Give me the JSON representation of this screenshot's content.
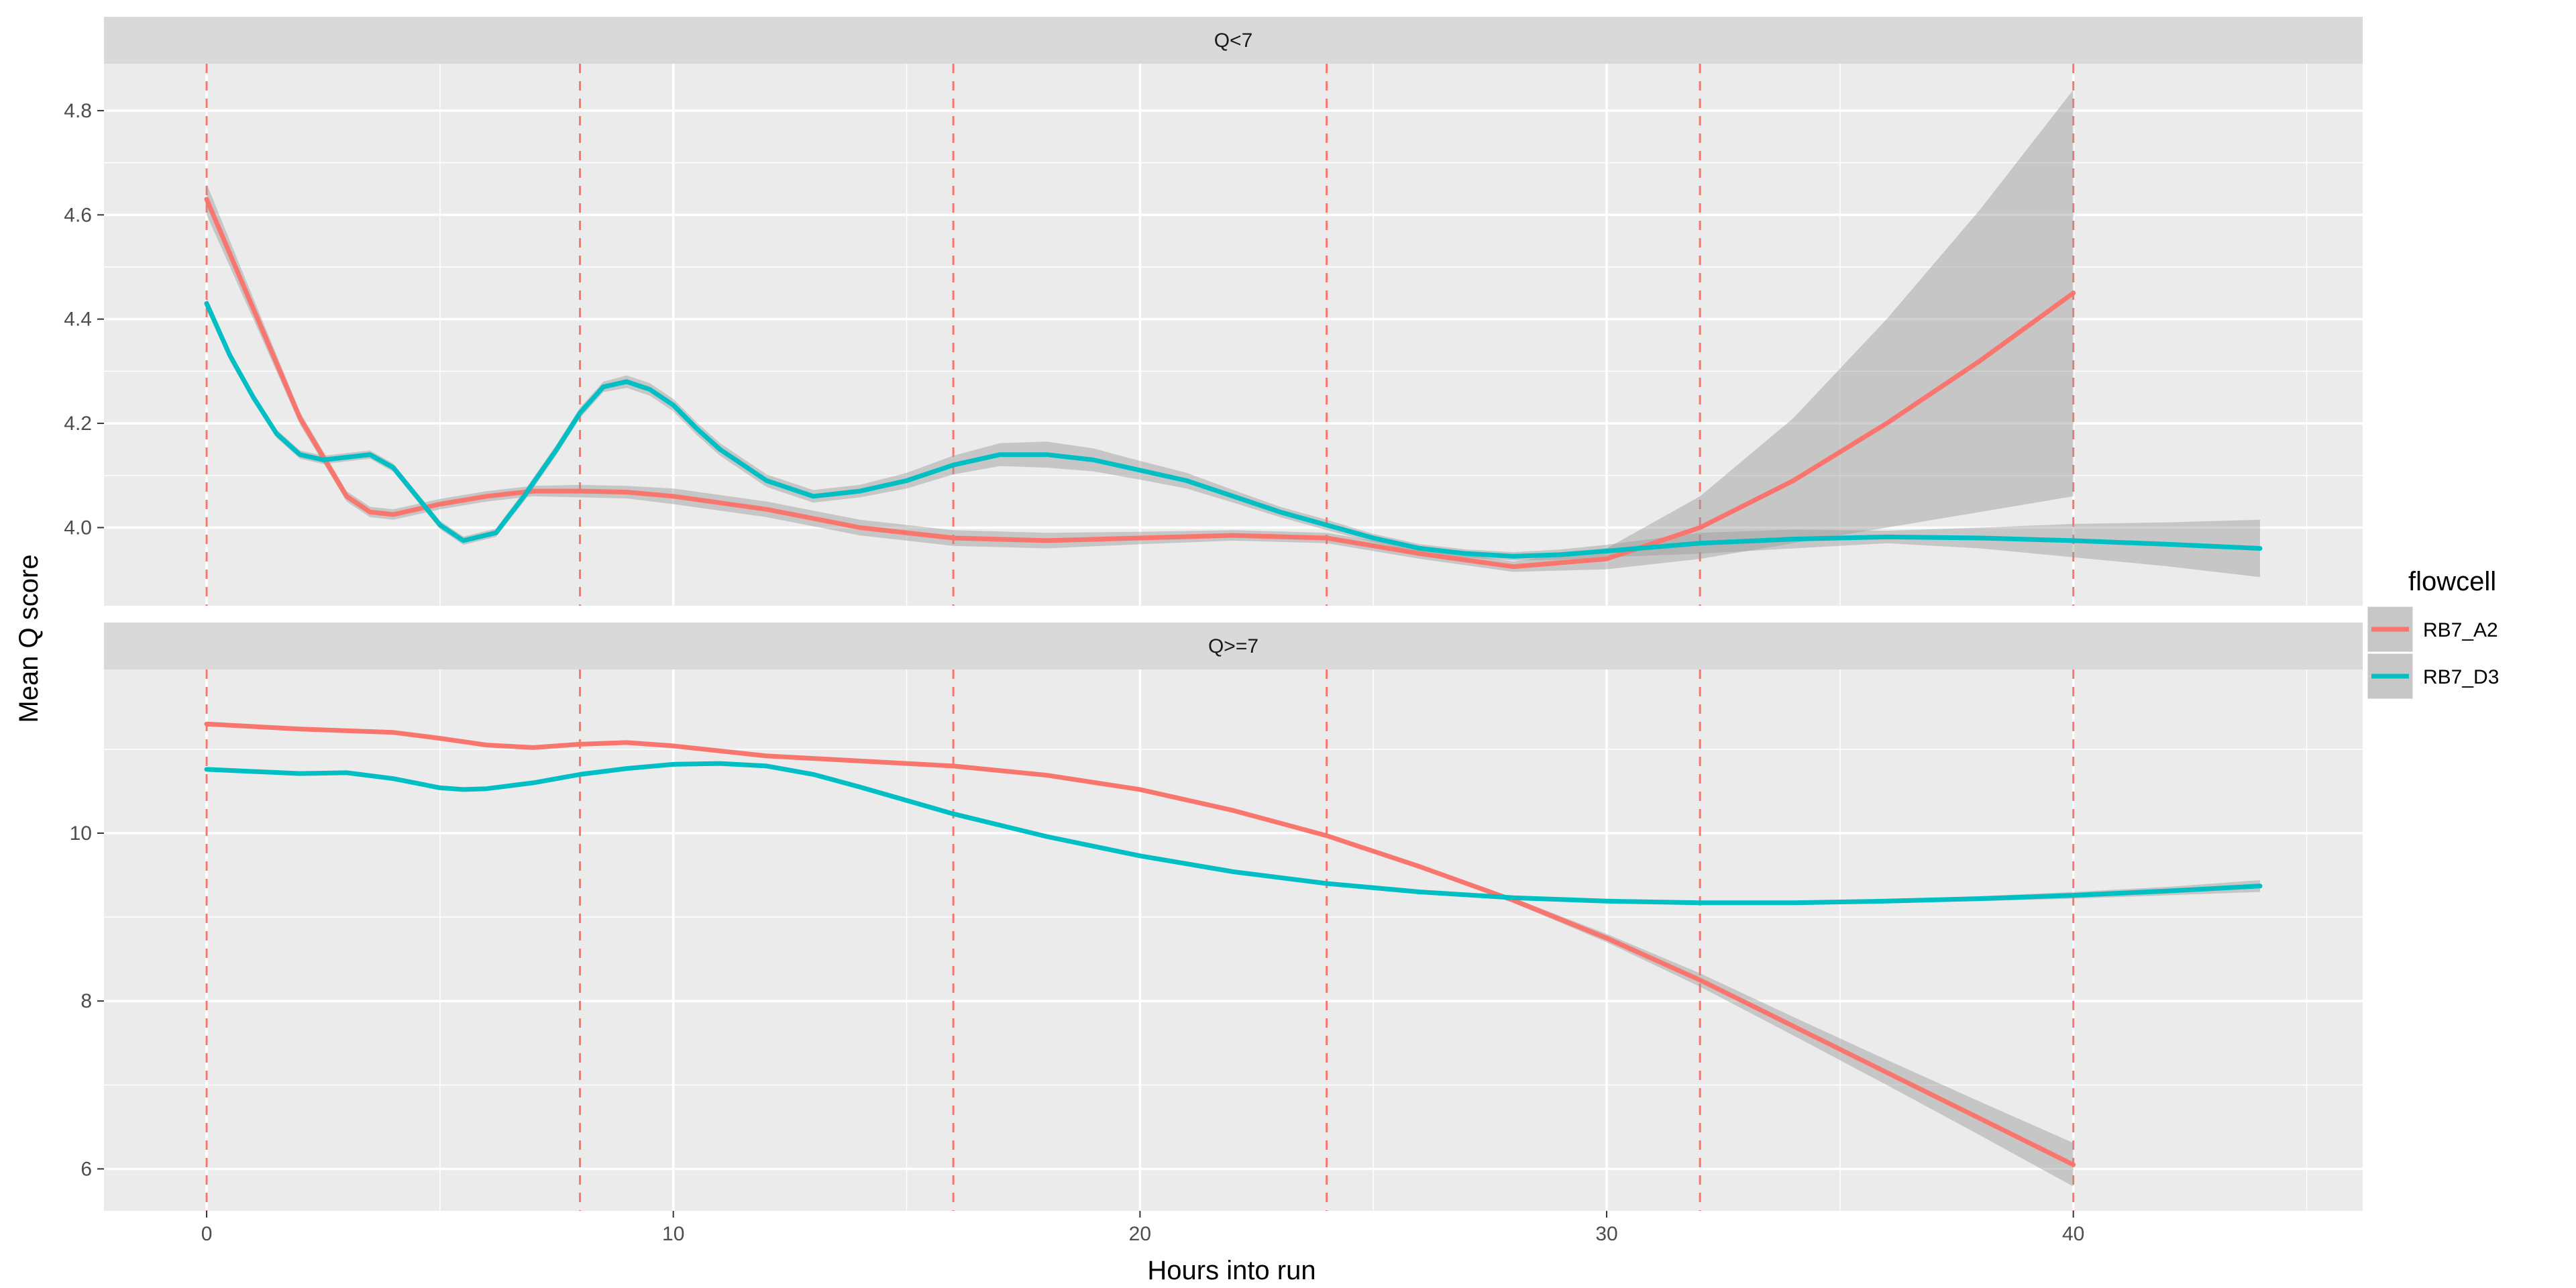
{
  "chart_data": {
    "type": "line",
    "xlabel": "Hours into run",
    "ylabel": "Mean Q score",
    "xlim": [
      -2.2,
      46.2
    ],
    "xticks": [
      0,
      10,
      20,
      30,
      40
    ],
    "x_minor_ticks": [
      5,
      15,
      25,
      35,
      45
    ],
    "grid": true,
    "vlines": {
      "x": [
        0,
        8,
        16,
        24,
        32,
        40
      ],
      "style": "dashed",
      "color": "#F8766D"
    },
    "legend": {
      "title": "flowcell",
      "position": "right",
      "entries": [
        "RB7_A2",
        "RB7_D3"
      ]
    },
    "colors": {
      "RB7_A2": "#F8766D",
      "RB7_D3": "#00BFC4",
      "ribbon": "#999999",
      "panel": "#EBEBEB",
      "strip": "#D9D9D9"
    },
    "panels": [
      {
        "label": "Q<7",
        "ylim": [
          3.85,
          4.89
        ],
        "yticks": [
          4.0,
          4.2,
          4.4,
          4.6,
          4.8
        ],
        "y_minor_ticks": [
          4.1,
          4.3,
          4.5,
          4.7
        ],
        "series": [
          {
            "name": "RB7_A2",
            "x": [
              0,
              1,
              2,
              3,
              3.5,
              4,
              5,
              6,
              7,
              8,
              9,
              10,
              12,
              14,
              16,
              18,
              20,
              22,
              24,
              26,
              28,
              30,
              32,
              34,
              36,
              38,
              40
            ],
            "y": [
              4.63,
              4.42,
              4.21,
              4.06,
              4.03,
              4.025,
              4.045,
              4.06,
              4.07,
              4.07,
              4.068,
              4.06,
              4.035,
              4.0,
              3.98,
              3.975,
              3.98,
              3.985,
              3.98,
              3.95,
              3.925,
              3.94,
              4.0,
              4.09,
              4.2,
              4.32,
              4.45
            ],
            "band_halfwidth": [
              0.03,
              0.02,
              0.012,
              0.01,
              0.01,
              0.01,
              0.01,
              0.01,
              0.01,
              0.012,
              0.012,
              0.015,
              0.015,
              0.015,
              0.015,
              0.015,
              0.012,
              0.01,
              0.01,
              0.01,
              0.01,
              0.02,
              0.06,
              0.12,
              0.2,
              0.29,
              0.39
            ]
          },
          {
            "name": "RB7_D3",
            "x": [
              0,
              0.5,
              1,
              1.5,
              2,
              2.5,
              3,
              3.5,
              4,
              4.5,
              5,
              5.5,
              6.2,
              6.8,
              7.5,
              8,
              8.5,
              9,
              9.5,
              10,
              10.5,
              11,
              12,
              13,
              14,
              15,
              16,
              17,
              18,
              19,
              20,
              21,
              22,
              23,
              24,
              25,
              26,
              27,
              28,
              29,
              30,
              32,
              34,
              36,
              38,
              40,
              42,
              44
            ],
            "y": [
              4.43,
              4.33,
              4.25,
              4.18,
              4.14,
              4.13,
              4.135,
              4.14,
              4.115,
              4.06,
              4.005,
              3.975,
              3.99,
              4.06,
              4.15,
              4.22,
              4.27,
              4.28,
              4.265,
              4.235,
              4.19,
              4.15,
              4.09,
              4.06,
              4.07,
              4.09,
              4.12,
              4.14,
              4.14,
              4.13,
              4.11,
              4.09,
              4.06,
              4.03,
              4.005,
              3.98,
              3.96,
              3.95,
              3.945,
              3.948,
              3.955,
              3.97,
              3.978,
              3.982,
              3.98,
              3.975,
              3.968,
              3.96
            ],
            "band_halfwidth": [
              0.012,
              0.01,
              0.008,
              0.008,
              0.008,
              0.008,
              0.008,
              0.008,
              0.008,
              0.008,
              0.008,
              0.008,
              0.008,
              0.01,
              0.01,
              0.01,
              0.01,
              0.012,
              0.012,
              0.012,
              0.012,
              0.012,
              0.012,
              0.012,
              0.012,
              0.015,
              0.018,
              0.022,
              0.025,
              0.022,
              0.018,
              0.015,
              0.012,
              0.01,
              0.01,
              0.008,
              0.008,
              0.008,
              0.008,
              0.01,
              0.012,
              0.02,
              0.018,
              0.012,
              0.02,
              0.032,
              0.042,
              0.055
            ]
          }
        ]
      },
      {
        "label": "Q>=7",
        "ylim": [
          5.5,
          11.95
        ],
        "yticks": [
          6,
          8,
          10
        ],
        "y_minor_ticks": [
          7,
          9,
          11
        ],
        "series": [
          {
            "name": "RB7_A2",
            "x": [
              0,
              2,
              4,
              5,
              6,
              7,
              8,
              9,
              10,
              12,
              14,
              16,
              18,
              20,
              22,
              24,
              26,
              28,
              30,
              32,
              34,
              36,
              38,
              40
            ],
            "y": [
              11.3,
              11.24,
              11.2,
              11.13,
              11.05,
              11.02,
              11.06,
              11.08,
              11.04,
              10.92,
              10.86,
              10.8,
              10.69,
              10.52,
              10.27,
              9.97,
              9.6,
              9.2,
              8.75,
              8.25,
              7.7,
              7.15,
              6.6,
              6.05
            ],
            "band_halfwidth": [
              0.02,
              0.02,
              0.02,
              0.02,
              0.02,
              0.02,
              0.02,
              0.02,
              0.02,
              0.02,
              0.02,
              0.02,
              0.02,
              0.02,
              0.02,
              0.02,
              0.02,
              0.03,
              0.05,
              0.08,
              0.11,
              0.15,
              0.2,
              0.26
            ]
          },
          {
            "name": "RB7_D3",
            "x": [
              0,
              2,
              3,
              4,
              5,
              5.5,
              6,
              7,
              8,
              9,
              10,
              11,
              12,
              13,
              14,
              16,
              18,
              20,
              22,
              24,
              26,
              28,
              30,
              32,
              34,
              36,
              38,
              40,
              42,
              44
            ],
            "y": [
              10.76,
              10.71,
              10.72,
              10.65,
              10.54,
              10.52,
              10.53,
              10.6,
              10.7,
              10.77,
              10.82,
              10.83,
              10.8,
              10.7,
              10.55,
              10.23,
              9.96,
              9.73,
              9.54,
              9.4,
              9.3,
              9.23,
              9.19,
              9.17,
              9.17,
              9.19,
              9.22,
              9.26,
              9.31,
              9.37
            ],
            "band_halfwidth": [
              0.02,
              0.02,
              0.02,
              0.02,
              0.02,
              0.02,
              0.02,
              0.02,
              0.02,
              0.02,
              0.02,
              0.02,
              0.02,
              0.02,
              0.02,
              0.02,
              0.02,
              0.02,
              0.02,
              0.02,
              0.02,
              0.02,
              0.02,
              0.02,
              0.02,
              0.02,
              0.03,
              0.04,
              0.05,
              0.07
            ]
          }
        ]
      }
    ]
  }
}
